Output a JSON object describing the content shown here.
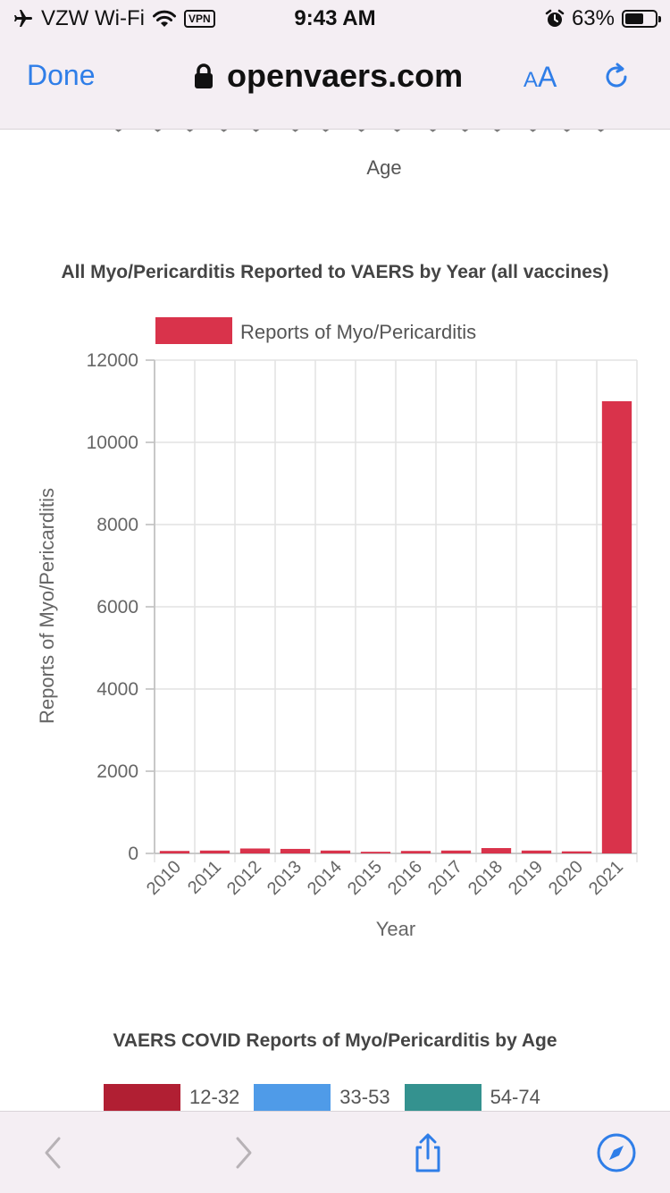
{
  "status_bar": {
    "carrier": "VZW Wi-Fi",
    "vpn": "VPN",
    "time": "9:43 AM",
    "battery": "63%",
    "battery_level": 0.63
  },
  "browser": {
    "done_label": "Done",
    "url": "openvaers.com",
    "text_size_label_small": "A",
    "text_size_label_large": "A"
  },
  "previous_chart": {
    "xlabel": "Age"
  },
  "chart_data": [
    {
      "type": "bar",
      "title": "All Myo/Pericarditis Reported to VAERS by Year (all vaccines)",
      "xlabel": "Year",
      "ylabel": "Reports of Myo/Pericarditis",
      "categories": [
        "2010",
        "2011",
        "2012",
        "2013",
        "2014",
        "2015",
        "2016",
        "2017",
        "2018",
        "2019",
        "2020",
        "2021"
      ],
      "series": [
        {
          "name": "Reports of Myo/Pericarditis",
          "color": "#d9334b",
          "values": [
            60,
            70,
            120,
            110,
            70,
            40,
            60,
            70,
            130,
            70,
            50,
            11000
          ]
        }
      ],
      "ylim": [
        0,
        12000
      ],
      "yticks": [
        0,
        2000,
        4000,
        6000,
        8000,
        10000,
        12000
      ],
      "grid": true,
      "legend_position": "top"
    },
    {
      "type": "bar",
      "title": "VAERS COVID Reports of Myo/Pericarditis by Age",
      "series": [
        {
          "name": "12-32",
          "color": "#b11f33"
        },
        {
          "name": "33-53",
          "color": "#4f9be8"
        },
        {
          "name": "54-74",
          "color": "#34928f"
        }
      ],
      "legend_position": "top"
    }
  ]
}
